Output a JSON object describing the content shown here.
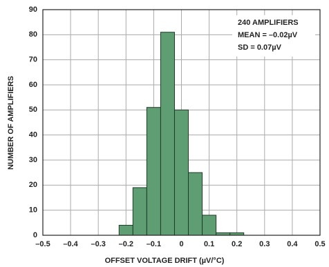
{
  "chart_data": {
    "type": "histogram",
    "xlabel": "OFFSET VOLTAGE DRIFT (µV/°C)",
    "ylabel": "NUMBER OF AMPLIFIERS",
    "annotation": [
      "240 AMPLIFIERS",
      "MEAN = –0.02µV",
      "SD = 0.07µV"
    ],
    "bins": [
      -0.225,
      -0.175,
      -0.125,
      -0.075,
      -0.025,
      0.025,
      0.075,
      0.125,
      0.175,
      0.225
    ],
    "counts": [
      4,
      19,
      51,
      81,
      50,
      25,
      8,
      1,
      1
    ],
    "color": "#5e9e72",
    "xlim": [
      -0.5,
      0.5
    ],
    "xticks": [
      {
        "value": -0.5,
        "label": "–0.5"
      },
      {
        "value": -0.4,
        "label": "–0.4"
      },
      {
        "value": -0.3,
        "label": "–0.3"
      },
      {
        "value": -0.2,
        "label": "–0.2"
      },
      {
        "value": -0.1,
        "label": "–0.1"
      },
      0,
      {
        "value": 0.1,
        "label": "0.1"
      },
      {
        "value": 0.2,
        "label": "0.2"
      },
      {
        "value": 0.3,
        "label": "0.3"
      },
      {
        "value": 0.4,
        "label": "0.4"
      },
      {
        "value": 0.5,
        "label": "0.5"
      }
    ],
    "ylim": [
      0,
      90
    ],
    "yticks": [
      0,
      10,
      20,
      30,
      40,
      50,
      60,
      70,
      80,
      90
    ],
    "grid": true
  }
}
